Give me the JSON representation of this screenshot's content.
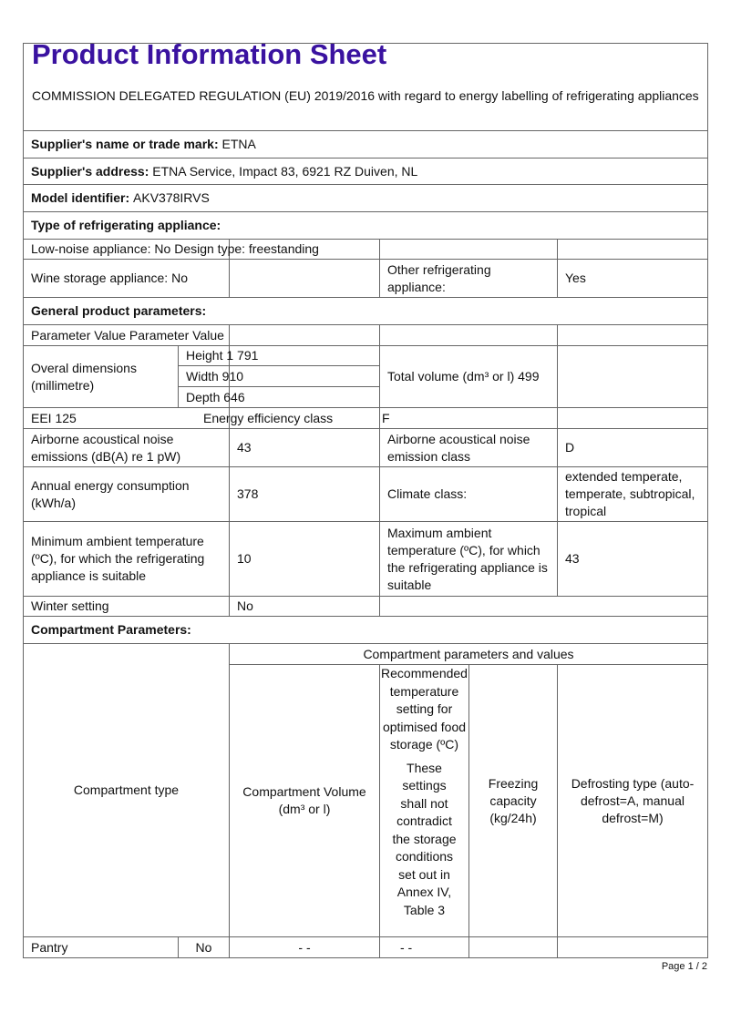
{
  "title": "Product Information Sheet",
  "subtitle": "COMMISSION DELEGATED REGULATION (EU) 2019/2016 with regard to energy labelling of refrigerating appliances",
  "supplier_name": {
    "label": "Supplier's name or trade mark:",
    "value": "ETNA"
  },
  "supplier_address": {
    "label": "Supplier's address:",
    "value": "ETNA Service, Impact 83, 6921 RZ Duiven, NL"
  },
  "model": {
    "label": "Model identifier:",
    "value": "AKV378IRVS"
  },
  "type_heading": "Type of refrigerating appliance:",
  "low_noise": "Low-noise appliance: No Design type: freestanding",
  "wine": "Wine storage appliance: No",
  "other_label": "Other  refrigerating appliance:",
  "other_value": "Yes",
  "general_heading": "General product parameters:",
  "param_header": "Parameter Value Parameter Value",
  "dimensions": {
    "label": "Overal dimensions (millimetre)",
    "height": "Height 1 791",
    "width": "Width 910",
    "depth": "Depth 646"
  },
  "total_volume": "Total volume (dm³ or l) 499",
  "eei": "EEI 125",
  "energy_class_label": "Energy efficiency class",
  "energy_class_value": "F",
  "noise_label": "Airborne acoustical noise emissions (dB(A) re 1 pW)",
  "noise_value": "43",
  "noise_class_label": "Airborne acoustical noise emission class",
  "noise_class_value": "D",
  "annual_label": "Annual energy consumption (kWh/a)",
  "annual_value": "378",
  "climate_label": "Climate class:",
  "climate_value": "extended temperate, temperate, subtropical, tropical",
  "min_label": "Minimum ambient temperature (ºC), for which the refrigerating appliance is suitable",
  "min_value": "10",
  "max_label": "Maximum ambient temperature (ºC), for which the refrigerating appliance is suitable",
  "max_value": "43",
  "winter_label": "Winter setting",
  "winter_value": "No",
  "compartment_heading": "Compartment Parameters:",
  "compartment_table": {
    "type_header": "Compartment type",
    "group_header": "Compartment parameters and values",
    "volume_header": "Compartment Volume (dm³ or l)",
    "temp_header": "Recommended temperature setting for optimised food storage (ºC)",
    "temp_note": "These settings shall not contradict the storage conditions set out in Annex IV, Table 3",
    "freezing_header": "Freezing capacity (kg/24h)",
    "defrost_header": "Defrosting type (auto-defrost=A, manual defrost=M)",
    "rows": [
      {
        "type": "Pantry",
        "present": "No",
        "volume": "- -",
        "temp": "- -",
        "freezing": "",
        "defrost": ""
      }
    ]
  },
  "page_label": "Page 1 / 2"
}
